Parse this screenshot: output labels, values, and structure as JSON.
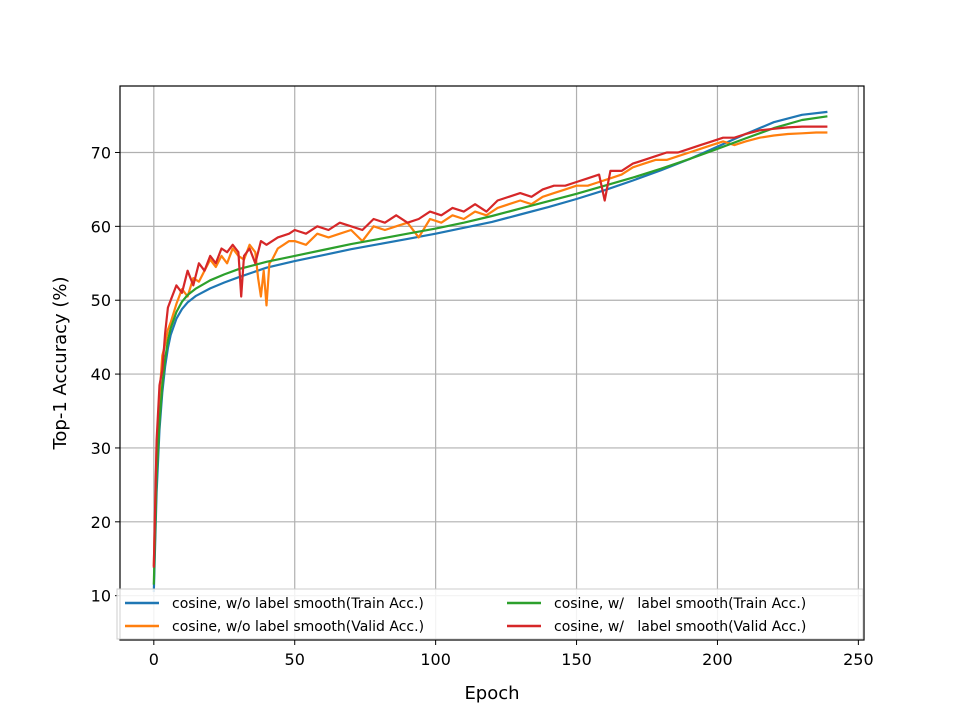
{
  "chart_data": {
    "type": "line",
    "title": "",
    "xlabel": "Epoch",
    "ylabel": "Top-1 Accuracy (%)",
    "xlim": [
      -12,
      252
    ],
    "ylim": [
      4,
      79
    ],
    "xticks": [
      0,
      50,
      100,
      150,
      200,
      250
    ],
    "yticks": [
      10,
      20,
      30,
      40,
      50,
      60,
      70
    ],
    "grid": true,
    "legend_position": "bottom",
    "legend_columns": 2,
    "series": [
      {
        "name": "cosine, w/o label smooth(Train Acc.)",
        "color": "#1f77b4",
        "x": [
          0,
          1,
          2,
          3,
          4,
          5,
          6,
          8,
          10,
          12,
          15,
          20,
          25,
          30,
          40,
          50,
          60,
          70,
          80,
          90,
          100,
          110,
          120,
          130,
          140,
          150,
          160,
          170,
          180,
          190,
          200,
          210,
          220,
          230,
          239
        ],
        "y": [
          10.5,
          24.0,
          32.5,
          37.5,
          41.0,
          43.5,
          45.3,
          47.5,
          48.8,
          49.7,
          50.6,
          51.6,
          52.4,
          53.1,
          54.4,
          55.3,
          56.1,
          56.9,
          57.6,
          58.3,
          59.0,
          59.8,
          60.6,
          61.6,
          62.6,
          63.7,
          64.9,
          66.2,
          67.6,
          69.1,
          70.8,
          72.5,
          74.1,
          75.1,
          75.5
        ]
      },
      {
        "name": "cosine, w/o label smooth(Valid Acc.)",
        "color": "#ff7f0e",
        "x": [
          0,
          1,
          2,
          3,
          4,
          5,
          6,
          8,
          10,
          12,
          14,
          16,
          18,
          20,
          22,
          24,
          26,
          28,
          30,
          32,
          34,
          36,
          37,
          38,
          39,
          40,
          41,
          42,
          44,
          46,
          48,
          50,
          54,
          58,
          62,
          66,
          70,
          74,
          78,
          82,
          86,
          90,
          94,
          98,
          102,
          106,
          110,
          114,
          118,
          122,
          126,
          130,
          134,
          138,
          142,
          146,
          150,
          154,
          158,
          162,
          166,
          170,
          174,
          178,
          182,
          186,
          190,
          194,
          198,
          202,
          206,
          210,
          215,
          220,
          225,
          230,
          235,
          239
        ],
        "y": [
          14.0,
          30.0,
          37.0,
          42.5,
          44.0,
          46.0,
          47.0,
          49.5,
          51.5,
          50.5,
          53.0,
          52.5,
          54.0,
          55.5,
          54.5,
          56.0,
          55.0,
          57.0,
          56.0,
          55.5,
          57.5,
          56.5,
          53.0,
          50.5,
          54.0,
          49.3,
          55.0,
          55.5,
          57.0,
          57.5,
          58.0,
          58.0,
          57.5,
          59.0,
          58.5,
          59.0,
          59.5,
          58.0,
          60.0,
          59.5,
          60.0,
          60.5,
          58.5,
          61.0,
          60.5,
          61.5,
          61.0,
          62.0,
          61.5,
          62.5,
          63.0,
          63.5,
          63.0,
          64.0,
          64.5,
          65.0,
          65.5,
          65.5,
          66.0,
          66.5,
          67.0,
          68.0,
          68.5,
          69.0,
          69.0,
          69.5,
          70.0,
          70.5,
          71.0,
          71.5,
          71.0,
          71.5,
          72.0,
          72.3,
          72.5,
          72.6,
          72.7,
          72.7
        ]
      },
      {
        "name": "cosine, w/   label smooth(Train Acc.)",
        "color": "#2ca02c",
        "x": [
          0,
          1,
          2,
          3,
          4,
          5,
          6,
          8,
          10,
          12,
          15,
          20,
          25,
          30,
          40,
          50,
          60,
          70,
          80,
          90,
          100,
          110,
          120,
          130,
          140,
          150,
          160,
          170,
          180,
          190,
          200,
          210,
          220,
          230,
          239
        ],
        "y": [
          11.5,
          26.0,
          33.5,
          38.5,
          42.0,
          44.5,
          46.2,
          48.4,
          49.8,
          50.7,
          51.6,
          52.7,
          53.5,
          54.2,
          55.2,
          56.0,
          56.8,
          57.6,
          58.3,
          59.0,
          59.7,
          60.5,
          61.4,
          62.4,
          63.4,
          64.4,
          65.5,
          66.6,
          67.8,
          69.1,
          70.5,
          71.9,
          73.3,
          74.4,
          74.9
        ]
      },
      {
        "name": "cosine, w/   label smooth(Valid Acc.)",
        "color": "#d62728",
        "x": [
          0,
          1,
          2,
          3,
          4,
          5,
          6,
          8,
          10,
          12,
          14,
          16,
          18,
          20,
          22,
          24,
          26,
          28,
          30,
          31,
          32,
          34,
          36,
          38,
          40,
          44,
          48,
          50,
          54,
          58,
          62,
          66,
          70,
          74,
          78,
          82,
          86,
          90,
          94,
          98,
          102,
          106,
          110,
          114,
          118,
          122,
          126,
          130,
          134,
          138,
          142,
          146,
          150,
          154,
          158,
          160,
          162,
          166,
          170,
          174,
          178,
          182,
          186,
          190,
          194,
          198,
          202,
          206,
          210,
          215,
          220,
          225,
          230,
          235,
          239
        ],
        "y": [
          13.8,
          31.0,
          38.5,
          40.5,
          45.5,
          49.0,
          50.0,
          52.0,
          51.0,
          54.0,
          52.0,
          55.0,
          54.0,
          56.0,
          55.0,
          57.0,
          56.5,
          57.5,
          56.5,
          50.5,
          56.0,
          57.0,
          55.0,
          58.0,
          57.5,
          58.5,
          59.0,
          59.5,
          59.0,
          60.0,
          59.5,
          60.5,
          60.0,
          59.5,
          61.0,
          60.5,
          61.5,
          60.5,
          61.0,
          62.0,
          61.5,
          62.5,
          62.0,
          63.0,
          62.0,
          63.5,
          64.0,
          64.5,
          64.0,
          65.0,
          65.5,
          65.5,
          66.0,
          66.5,
          67.0,
          63.5,
          67.5,
          67.5,
          68.5,
          69.0,
          69.5,
          70.0,
          70.0,
          70.5,
          71.0,
          71.5,
          72.0,
          72.0,
          72.5,
          73.0,
          73.2,
          73.4,
          73.5,
          73.5,
          73.5
        ]
      }
    ]
  }
}
